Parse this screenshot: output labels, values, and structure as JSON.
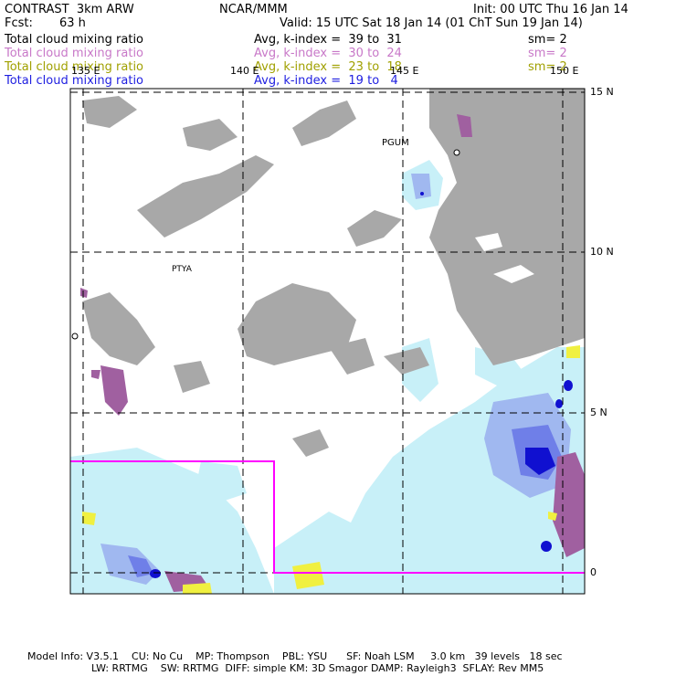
{
  "header": {
    "model": "CONTRAST  3km ARW",
    "org": "NCAR/MMM",
    "init": "Init: 00 UTC Thu 16 Jan 14",
    "fcst_label": "Fcst:",
    "fcst_value": "63 h",
    "valid": "Valid: 15 UTC Sat 18 Jan 14 (01 ChT Sun 19 Jan 14)"
  },
  "legend": [
    {
      "field": "Total cloud mixing ratio",
      "stat": "Avg, k-index =  39 to  31",
      "sm": "sm= 2",
      "color": "#000000"
    },
    {
      "field": "Total cloud mixing ratio",
      "stat": "Avg, k-index =  30 to  24",
      "sm": "sm= 2",
      "color": "#c878c8"
    },
    {
      "field": "Total cloud mixing ratio",
      "stat": "Avg, k-index =  23 to  18",
      "sm": "sm= 2",
      "color": "#a0a000"
    },
    {
      "field": "Total cloud mixing ratio",
      "stat": "Avg, k-index =  19 to   4",
      "sm": "",
      "color": "#1e1ee0"
    }
  ],
  "map": {
    "lon_labels": [
      "135 E",
      "140 E",
      "145 E",
      "150 E"
    ],
    "lat_labels": [
      "15 N",
      "10 N",
      "5 N",
      "0"
    ],
    "stations": [
      "PGUM",
      "PTYA"
    ]
  },
  "footer": {
    "line1": "Model Info: V3.5.1    CU: No Cu    MP: Thompson    PBL: YSU      SF: Noah LSM     3.0 km   39 levels   18 sec",
    "line2": "LW: RRTMG    SW: RRTMG  DIFF: simple KM: 3D Smagor DAMP: Rayleigh3  SFLAY: Rev MM5"
  }
}
